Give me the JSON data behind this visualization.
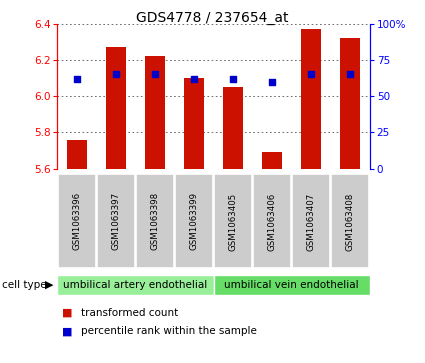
{
  "title": "GDS4778 / 237654_at",
  "samples": [
    "GSM1063396",
    "GSM1063397",
    "GSM1063398",
    "GSM1063399",
    "GSM1063405",
    "GSM1063406",
    "GSM1063407",
    "GSM1063408"
  ],
  "transformed_count": [
    5.76,
    6.27,
    6.22,
    6.1,
    6.05,
    5.69,
    6.37,
    6.32
  ],
  "percentile_rank": [
    62,
    65,
    65,
    62,
    62,
    60,
    65,
    65
  ],
  "ymin": 5.6,
  "ymax": 6.4,
  "yticks": [
    5.6,
    5.8,
    6.0,
    6.2,
    6.4
  ],
  "right_yticks": [
    0,
    25,
    50,
    75,
    100
  ],
  "bar_color": "#cc1100",
  "dot_color": "#0000cc",
  "groups": [
    {
      "label": "umbilical artery endothelial",
      "start": 0,
      "end": 4,
      "color": "#99ee99"
    },
    {
      "label": "umbilical vein endothelial",
      "start": 4,
      "end": 8,
      "color": "#66dd66"
    }
  ],
  "legend_items": [
    {
      "label": "transformed count",
      "color": "#cc1100"
    },
    {
      "label": "percentile rank within the sample",
      "color": "#0000cc"
    }
  ],
  "background_color": "#ffffff",
  "grid_color": "#555555",
  "bar_width": 0.5
}
